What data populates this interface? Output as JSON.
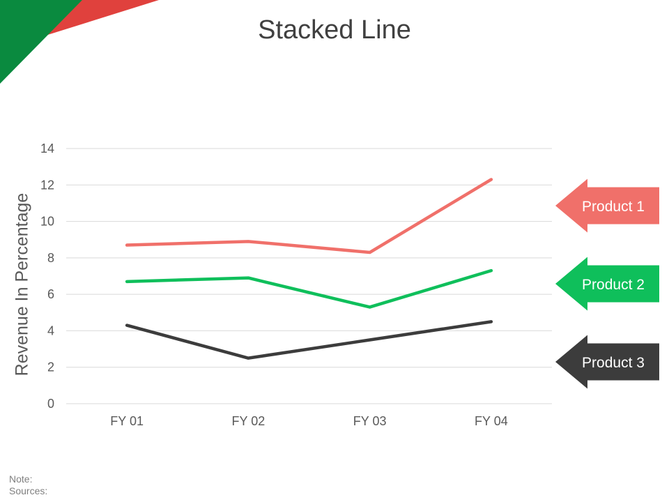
{
  "title": "Stacked Line",
  "footer": {
    "note": "Note:",
    "sources": "Sources:"
  },
  "colors": {
    "deco_green": "#0a8a3f",
    "deco_red": "#e0413d",
    "gridline": "#d9d9d9",
    "axis_text": "#595959"
  },
  "chart_data": {
    "type": "line",
    "title": "Stacked Line",
    "xlabel": "",
    "ylabel": "Revenue In Percentage",
    "categories": [
      "FY 01",
      "FY 02",
      "FY 03",
      "FY 04"
    ],
    "ylim": [
      0,
      14
    ],
    "yticks": [
      0,
      2,
      4,
      6,
      8,
      10,
      12,
      14
    ],
    "grid": true,
    "legend_position": "right",
    "series": [
      {
        "name": "Product 1",
        "values": [
          8.7,
          8.9,
          8.3,
          12.3
        ],
        "color": "#f0706a"
      },
      {
        "name": "Product 2",
        "values": [
          6.7,
          6.9,
          5.3,
          7.3
        ],
        "color": "#0fbf5b"
      },
      {
        "name": "Product 3",
        "values": [
          4.3,
          2.5,
          3.5,
          4.5
        ],
        "color": "#3c3c3c"
      }
    ]
  }
}
